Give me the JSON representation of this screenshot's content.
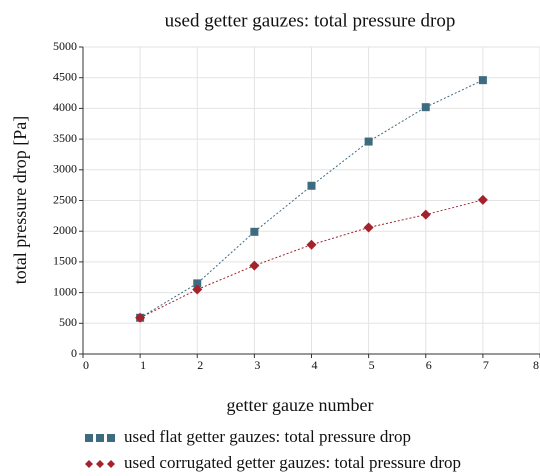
{
  "chart_data": {
    "type": "line",
    "title": "used getter gauzes: total pressure drop",
    "x_label": "getter gauze number",
    "y_label": "total pressure drop [Pa]",
    "x": [
      1,
      2,
      3,
      4,
      5,
      6,
      7
    ],
    "series": [
      {
        "name": "used flat getter gauzes: total pressure drop",
        "color": "#3f6b80",
        "marker": "square",
        "values": [
          590,
          1150,
          1990,
          2740,
          3460,
          4020,
          4460
        ]
      },
      {
        "name": "used corrugated getter gauzes: total pressure drop",
        "color": "#a3222b",
        "marker": "diamond",
        "values": [
          590,
          1050,
          1440,
          1780,
          2060,
          2270,
          2510
        ]
      }
    ],
    "xlim": [
      0,
      8
    ],
    "xticks": [
      0,
      1,
      2,
      3,
      4,
      5,
      6,
      7,
      8
    ],
    "ylim": [
      0,
      5000
    ],
    "yticks": [
      0,
      500,
      1000,
      1500,
      2000,
      2500,
      3000,
      3500,
      4000,
      4500,
      5000
    ],
    "grid": true,
    "legend": "bottom"
  }
}
